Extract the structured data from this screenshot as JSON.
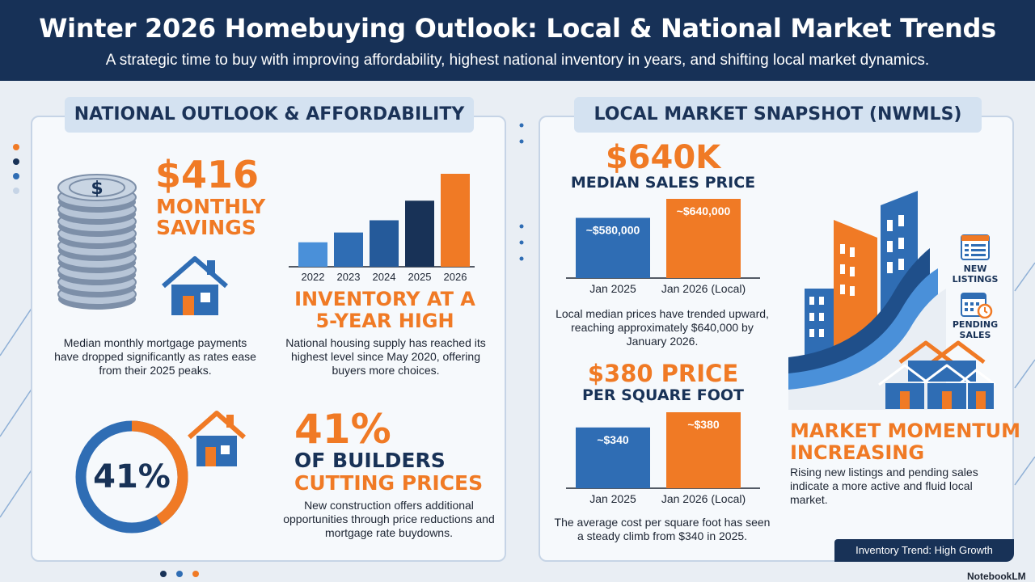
{
  "header": {
    "title": "Winter 2026 Homebuying Outlook: Local & National Market Trends",
    "subtitle": "A strategic time to buy with improving affordability, highest national inventory in years, and shifting local market dynamics."
  },
  "national": {
    "heading": "NATIONAL OUTLOOK & AFFORDABILITY",
    "savings": {
      "amount": "$416",
      "label_line1": "MONTHLY",
      "label_line2": "SAVINGS",
      "description": "Median monthly mortgage payments have dropped significantly as rates ease from their 2025 peaks."
    },
    "inventory": {
      "title_line1": "INVENTORY AT A",
      "title_line2": "5-YEAR HIGH",
      "description": "National housing supply has reached its highest level since May 2020, offering buyers more choices."
    },
    "builders": {
      "percent": "41%",
      "donut_label": "41%",
      "line1": "OF BUILDERS",
      "line2": "CUTTING PRICES",
      "description": "New construction offers additional opportunities through price reductions and mortgage rate buydowns."
    }
  },
  "local": {
    "heading": "LOCAL MARKET SNAPSHOT (NWMLS)",
    "median": {
      "amount": "$640K",
      "label": "MEDIAN SALES PRICE",
      "description": "Local median prices have trended upward, reaching approximately $640,000 by January 2026."
    },
    "ppsf": {
      "amount": "$380 PRICE",
      "label": "PER SQUARE FOOT",
      "description": "The average cost per square foot has seen a steady climb from $340 in 2025."
    },
    "momentum": {
      "icon_label_1_line1": "NEW",
      "icon_label_1_line2": "LISTINGS",
      "icon_label_2_line1": "PENDING",
      "icon_label_2_line2": "SALES",
      "title_line1": "MARKET MOMENTUM",
      "title_line2": "INCREASING",
      "description": "Rising new listings and pending sales indicate a more active and fluid local market."
    },
    "footer_tag": "Inventory Trend: High Growth"
  },
  "watermark": "NotebookLM",
  "colors": {
    "navy": "#173157",
    "orange": "#f07a25",
    "blue": "#2f6db4",
    "light_blue": "#4a90d9"
  },
  "chart_data": [
    {
      "type": "bar",
      "categories": [
        "2022",
        "2023",
        "2024",
        "2025",
        "2026"
      ],
      "values": [
        1.0,
        1.4,
        1.9,
        2.7,
        3.8
      ],
      "title": "",
      "xlabel": "",
      "ylabel": "",
      "colors": [
        "#4a90d9",
        "#2f6db4",
        "#255a9a",
        "#183257",
        "#f07a25"
      ]
    },
    {
      "type": "bar",
      "categories": [
        "Jan 2025",
        "Jan 2026 (Local)"
      ],
      "values": [
        580000,
        640000
      ],
      "value_labels": [
        "~$580,000",
        "~$640,000"
      ],
      "title": "",
      "xlabel": "",
      "ylabel": ""
    },
    {
      "type": "bar",
      "categories": [
        "Jan 2025",
        "Jan 2026 (Local)"
      ],
      "values": [
        340,
        380
      ],
      "value_labels": [
        "~$340",
        "~$380"
      ],
      "title": "",
      "xlabel": "",
      "ylabel": ""
    }
  ]
}
